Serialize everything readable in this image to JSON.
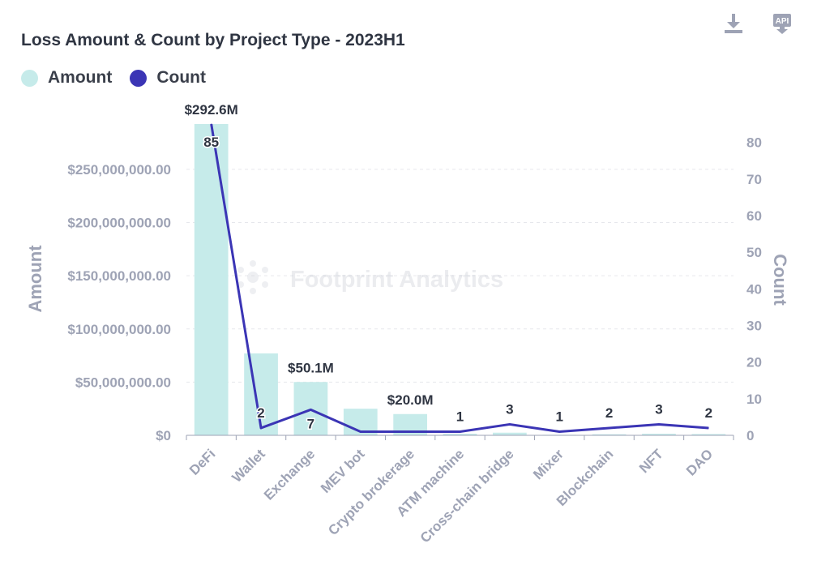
{
  "header": {
    "title": "Loss Amount & Count by Project Type - 2023H1"
  },
  "toolbar": {
    "download_icon": "download-icon",
    "api_icon": "api-icon",
    "api_label": "API"
  },
  "watermark": {
    "text": "Footprint Analytics"
  },
  "colors": {
    "amount": "#c6ebea",
    "count": "#3b35b5",
    "axis": "#9ea3b5",
    "title": "#2f3542"
  },
  "chart_data": {
    "type": "bar",
    "title": "Loss Amount & Count by Project Type - 2023H1",
    "categories": [
      "DeFi",
      "Wallet",
      "Exchange",
      "MEV bot",
      "Crypto brokerage",
      "ATM machine",
      "Cross-chain bridge",
      "Mixer",
      "Blockchain",
      "NFT",
      "DAO"
    ],
    "legend": [
      {
        "name": "Amount"
      },
      {
        "name": "Count"
      }
    ],
    "series": [
      {
        "name": "Amount",
        "type": "bar",
        "axis": "left",
        "values": [
          292600000,
          77000000,
          50100000,
          25000000,
          20000000,
          1500000,
          2500000,
          500000,
          1000000,
          1500000,
          1200000
        ],
        "labels": [
          "$292.6M",
          "",
          "$50.1M",
          "",
          "$20.0M",
          "",
          "",
          "",
          "",
          "",
          ""
        ]
      },
      {
        "name": "Count",
        "type": "line",
        "axis": "right",
        "values": [
          85,
          2,
          7,
          1,
          1,
          1,
          3,
          1,
          2,
          3,
          2
        ],
        "labels": [
          "85",
          "2",
          "7",
          "",
          "",
          "1",
          "3",
          "1",
          "2",
          "3",
          "2"
        ]
      }
    ],
    "ylabel": "Amount",
    "y2label": "Count",
    "ylim": [
      0,
      292600000
    ],
    "y2lim": [
      0,
      85
    ],
    "yticks": [
      0,
      50000000,
      100000000,
      150000000,
      200000000,
      250000000
    ],
    "ytick_labels": [
      "$0",
      "$50,000,000.00",
      "$100,000,000.00",
      "$150,000,000.00",
      "$200,000,000.00",
      "$250,000,000.00"
    ],
    "y2ticks": [
      0,
      10,
      20,
      30,
      40,
      50,
      60,
      70,
      80
    ],
    "y2tick_labels": [
      "0",
      "10",
      "20",
      "30",
      "40",
      "50",
      "60",
      "70",
      "80"
    ],
    "grid": true,
    "legend_position": "top-left"
  }
}
